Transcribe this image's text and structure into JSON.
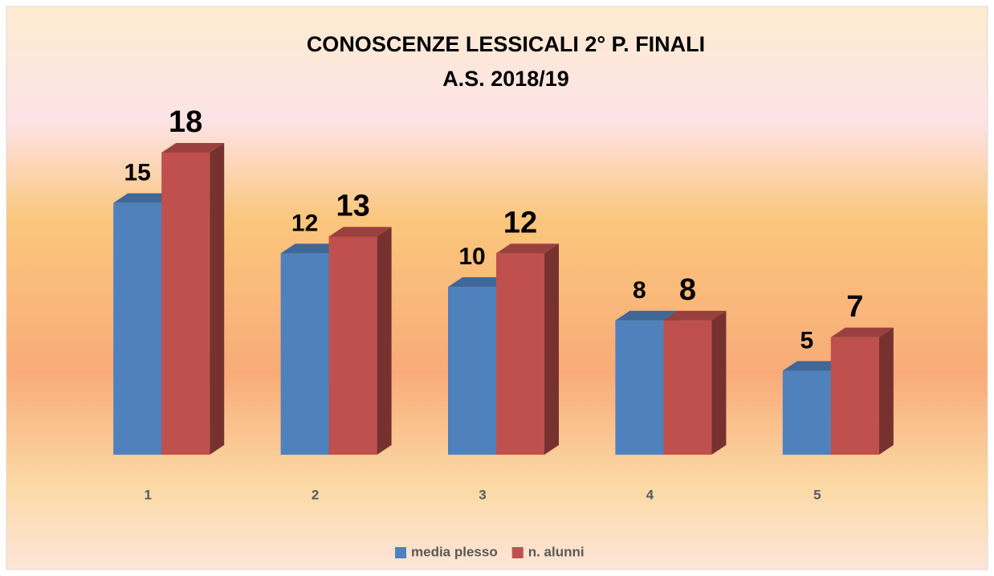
{
  "chart_data": {
    "type": "bar3d",
    "title": "CONOSCENZE LESSICALI 2° P. FINALI",
    "subtitle": "A.S. 2018/19",
    "categories": [
      "1",
      "2",
      "3",
      "4",
      "5"
    ],
    "series": [
      {
        "name": "media plesso",
        "color": "#4f81bd",
        "values": [
          15,
          12,
          10,
          8,
          5
        ]
      },
      {
        "name": "n. alunni",
        "color": "#c0504d",
        "values": [
          18,
          13,
          12,
          8,
          7
        ]
      }
    ],
    "legend": "bottom"
  }
}
